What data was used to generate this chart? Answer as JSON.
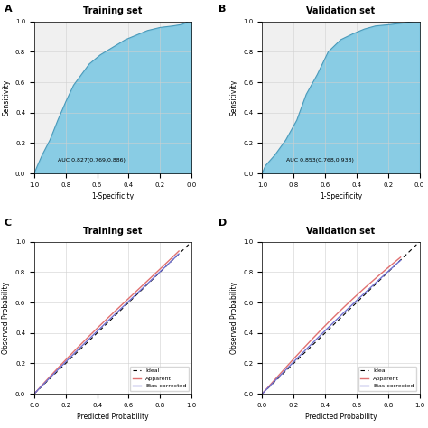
{
  "panel_A": {
    "title": "Training set",
    "auc_text": "AUC 0.827(0.769,0.886)",
    "xlabel": "1-Specificity",
    "ylabel": "Sensitivity",
    "fill_color": "#7ec8e3",
    "line_color": "#4a9aba"
  },
  "panel_B": {
    "title": "Validation set",
    "auc_text": "AUC 0.853(0.768,0.938)",
    "xlabel": "1-Specificity",
    "ylabel": "Sensitivity",
    "fill_color": "#7ec8e3",
    "line_color": "#4a9aba"
  },
  "panel_C": {
    "title": "Training set",
    "xlabel": "Predicted Probability",
    "ylabel": "Observed Probability"
  },
  "panel_D": {
    "title": "Validation set",
    "xlabel": "Predicted Probability",
    "ylabel": "Observed Probability"
  },
  "bg_color": "#f0f0f0",
  "grid_color": "#d0d0d0",
  "ideal_color": "black",
  "apparent_color": "#e07070",
  "bias_corrected_color": "#7070d0"
}
